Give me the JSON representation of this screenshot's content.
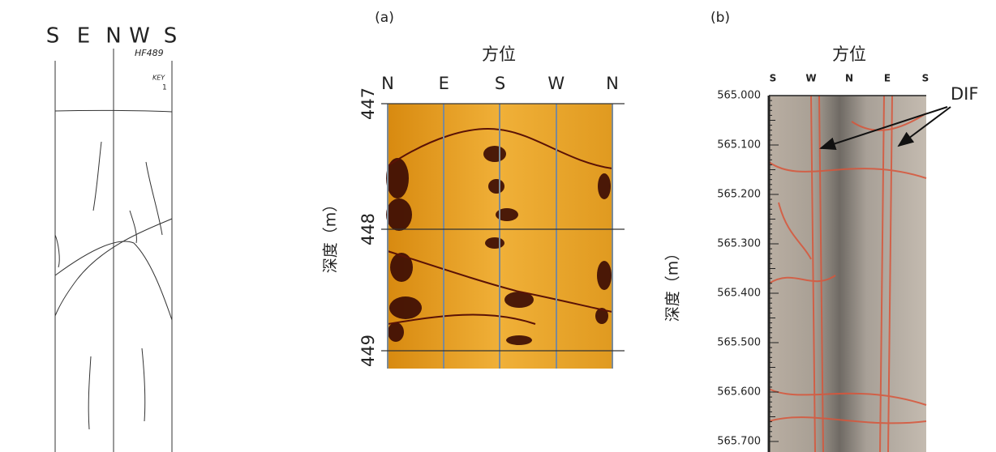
{
  "left_panel": {
    "directions": [
      "S",
      "E",
      "N",
      "W",
      "S"
    ],
    "well_label": "HF489",
    "key_label": "KEY",
    "key_number": "1"
  },
  "panel_a": {
    "label": "(a)",
    "azimuth_title": "方位",
    "directions": [
      "N",
      "E",
      "S",
      "W",
      "N"
    ],
    "depths": [
      "447",
      "448",
      "449"
    ],
    "depth_axis_label": "深度（m）"
  },
  "panel_b": {
    "label": "(b)",
    "azimuth_title": "方位",
    "directions": [
      "S",
      "W",
      "N",
      "E",
      "S"
    ],
    "depths": [
      "565.000",
      "565.100",
      "565.200",
      "565.300",
      "565.400",
      "565.500",
      "565.600",
      "565.700"
    ],
    "depth_axis_label": "深度（m）",
    "annotation": "DIF"
  }
}
